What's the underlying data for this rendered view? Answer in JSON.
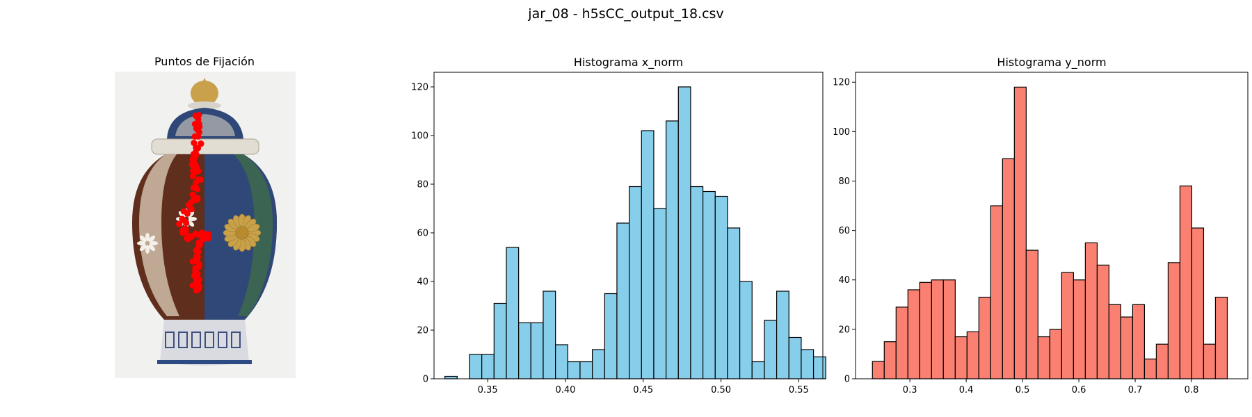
{
  "figure": {
    "suptitle": "jar_08 - h5sCC_output_18.csv"
  },
  "image_panel": {
    "title": "Puntos de Fijación",
    "colors": {
      "background": "#f1f1f0",
      "body_dark": "#5f2e1c",
      "body_blue": "#2f4878",
      "body_cream": "#e8ddc8",
      "gold": "#c9a14a",
      "green": "#3f6b4a",
      "fixation": "#ff0000"
    }
  },
  "chart_data": [
    {
      "type": "bar",
      "subtype": "histogram",
      "title": "Histograma x_norm",
      "xlabel": "",
      "ylabel": "",
      "color": "#87ceeb",
      "edgecolor": "#000000",
      "bin_start": 0.3225,
      "bin_width": 0.0079,
      "values": [
        1,
        0,
        10,
        10,
        31,
        54,
        23,
        23,
        36,
        14,
        7,
        7,
        12,
        35,
        64,
        79,
        102,
        70,
        106,
        120,
        79,
        77,
        75,
        62,
        40,
        7,
        24,
        36,
        17,
        12,
        9
      ],
      "xlim": [
        0.3155,
        0.5655
      ],
      "ylim": [
        0,
        126
      ],
      "xticks": [
        0.35,
        0.4,
        0.45,
        0.5,
        0.55
      ],
      "xtick_labels": [
        "0.35",
        "0.40",
        "0.45",
        "0.50",
        "0.55"
      ],
      "yticks": [
        0,
        20,
        40,
        60,
        80,
        100,
        120
      ],
      "ytick_labels": [
        "0",
        "20",
        "40",
        "60",
        "80",
        "100",
        "120"
      ],
      "grid": false
    },
    {
      "type": "bar",
      "subtype": "histogram",
      "title": "Histograma y_norm",
      "xlabel": "",
      "ylabel": "",
      "color": "#fa8072",
      "edgecolor": "#000000",
      "bin_start": 0.2335,
      "bin_width": 0.021,
      "values": [
        7,
        15,
        29,
        36,
        39,
        40,
        40,
        17,
        19,
        33,
        70,
        89,
        118,
        52,
        17,
        20,
        43,
        40,
        55,
        46,
        30,
        25,
        30,
        8,
        14,
        47,
        78,
        61,
        14,
        33
      ],
      "xlim": [
        0.2035,
        0.9
      ],
      "ylim": [
        0,
        124
      ],
      "xticks": [
        0.3,
        0.4,
        0.5,
        0.6,
        0.7,
        0.8
      ],
      "xtick_labels": [
        "0.3",
        "0.4",
        "0.5",
        "0.6",
        "0.7",
        "0.8"
      ],
      "yticks": [
        0,
        20,
        40,
        60,
        80,
        100,
        120
      ],
      "ytick_labels": [
        "0",
        "20",
        "40",
        "60",
        "80",
        "100",
        "120"
      ],
      "grid": false
    }
  ]
}
